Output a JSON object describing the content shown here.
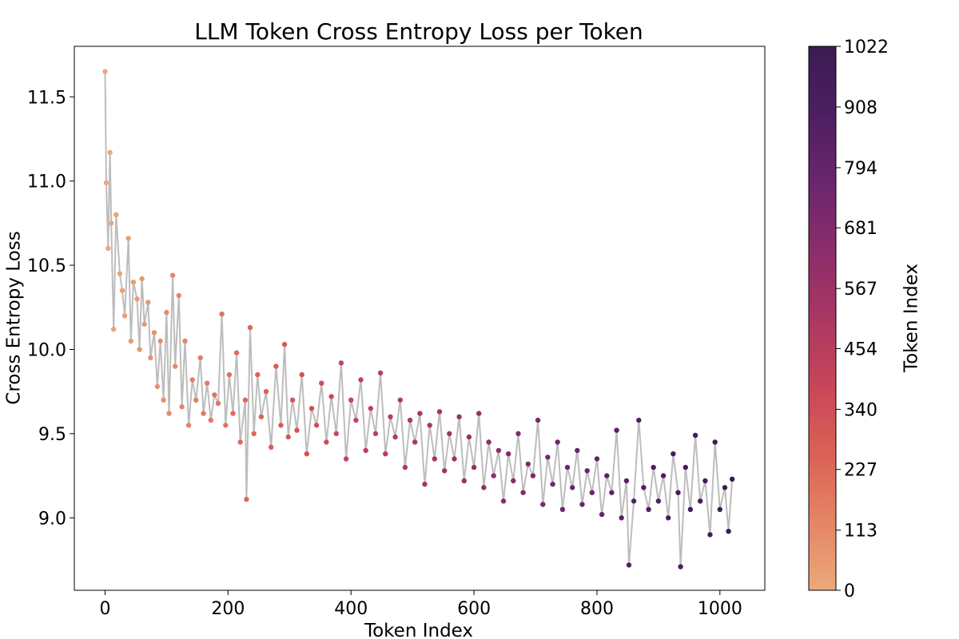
{
  "chart_data": {
    "type": "scatter",
    "title": "LLM Token Cross Entropy Loss per Token",
    "xlabel": "Token Index",
    "ylabel": "Cross Entropy Loss",
    "xlim": [
      -50,
      1073
    ],
    "ylim": [
      8.57,
      11.8
    ],
    "x_ticks": [
      0,
      200,
      400,
      600,
      800,
      1000
    ],
    "y_ticks": [
      9.0,
      9.5,
      10.0,
      10.5,
      11.0,
      11.5
    ],
    "x_tick_labels": [
      "0",
      "200",
      "400",
      "600",
      "800",
      "1000"
    ],
    "y_tick_labels": [
      "9.0",
      "9.5",
      "10.0",
      "10.5",
      "11.0",
      "11.5"
    ],
    "grid": false,
    "connect_points": true,
    "line_color": "#bdbdbd",
    "colormap": "flare",
    "colormap_stops": [
      "#eba97b",
      "#e58566",
      "#db6155",
      "#c84659",
      "#aa3762",
      "#8b2d6b",
      "#6a266c",
      "#4d1f61",
      "#3b1b53"
    ],
    "colorbar": {
      "label": "Token Index",
      "range": [
        0,
        1022
      ],
      "ticks": [
        0,
        113,
        227,
        340,
        454,
        567,
        681,
        794,
        908,
        1022
      ],
      "tick_labels": [
        "0",
        "113",
        "227",
        "340",
        "454",
        "567",
        "681",
        "794",
        "908",
        "1022"
      ]
    },
    "series": [
      {
        "x": [
          0,
          2,
          5,
          8,
          10,
          14,
          18,
          24,
          28,
          32,
          38,
          42,
          46,
          52,
          56,
          60,
          64,
          70,
          74,
          80,
          85,
          90,
          95,
          100,
          104,
          110,
          114,
          120,
          125,
          130,
          136,
          142,
          148,
          155,
          160,
          166,
          172,
          178,
          184,
          190,
          196,
          202,
          208,
          214,
          220,
          228,
          230,
          236,
          242,
          248,
          254,
          262,
          270,
          278,
          286,
          292,
          298,
          305,
          312,
          320,
          328,
          336,
          344,
          352,
          360,
          368,
          376,
          384,
          392,
          400,
          408,
          416,
          424,
          432,
          440,
          448,
          456,
          464,
          472,
          480,
          488,
          496,
          504,
          512,
          520,
          528,
          536,
          544,
          552,
          560,
          568,
          576,
          584,
          592,
          600,
          608,
          616,
          624,
          632,
          640,
          648,
          656,
          664,
          672,
          680,
          688,
          696,
          704,
          712,
          720,
          728,
          736,
          744,
          752,
          760,
          768,
          776,
          784,
          792,
          800,
          808,
          816,
          824,
          832,
          840,
          848,
          852,
          860,
          868,
          876,
          884,
          892,
          900,
          908,
          916,
          924,
          932,
          936,
          944,
          952,
          960,
          968,
          976,
          984,
          992,
          1000,
          1008,
          1014,
          1020
        ],
        "y": [
          11.65,
          10.99,
          10.6,
          11.17,
          10.75,
          10.12,
          10.8,
          10.45,
          10.35,
          10.2,
          10.66,
          10.05,
          10.4,
          10.3,
          10.0,
          10.42,
          10.15,
          10.28,
          9.95,
          10.1,
          9.78,
          10.05,
          9.7,
          10.22,
          9.62,
          10.44,
          9.9,
          10.32,
          9.66,
          10.05,
          9.55,
          9.82,
          9.7,
          9.95,
          9.62,
          9.8,
          9.58,
          9.73,
          9.68,
          10.21,
          9.55,
          9.85,
          9.62,
          9.98,
          9.45,
          9.7,
          9.11,
          10.13,
          9.5,
          9.85,
          9.6,
          9.75,
          9.42,
          9.9,
          9.55,
          10.03,
          9.48,
          9.7,
          9.52,
          9.85,
          9.38,
          9.65,
          9.55,
          9.8,
          9.45,
          9.72,
          9.5,
          9.92,
          9.35,
          9.7,
          9.58,
          9.82,
          9.4,
          9.65,
          9.5,
          9.86,
          9.38,
          9.6,
          9.48,
          9.7,
          9.3,
          9.58,
          9.45,
          9.62,
          9.2,
          9.55,
          9.35,
          9.63,
          9.28,
          9.5,
          9.35,
          9.6,
          9.22,
          9.48,
          9.3,
          9.62,
          9.18,
          9.45,
          9.25,
          9.4,
          9.1,
          9.38,
          9.22,
          9.5,
          9.15,
          9.32,
          9.25,
          9.58,
          9.08,
          9.36,
          9.2,
          9.45,
          9.05,
          9.3,
          9.18,
          9.4,
          9.08,
          9.28,
          9.15,
          9.35,
          9.02,
          9.25,
          9.15,
          9.52,
          9.0,
          9.22,
          8.72,
          9.1,
          9.58,
          9.18,
          9.05,
          9.3,
          9.1,
          9.25,
          9.0,
          9.38,
          9.15,
          8.71,
          9.3,
          9.05,
          9.49,
          9.1,
          9.22,
          8.9,
          9.45,
          9.05,
          9.18,
          8.92,
          9.23
        ]
      }
    ]
  }
}
